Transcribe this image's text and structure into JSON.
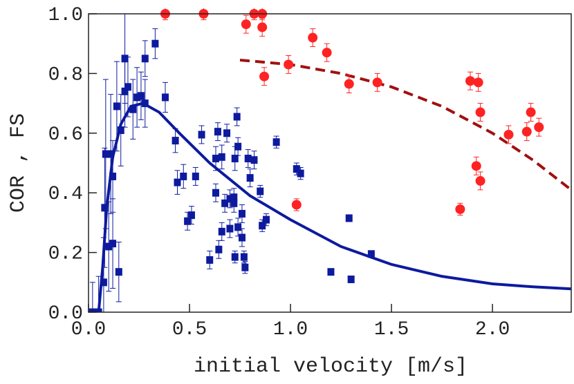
{
  "chart_data": {
    "type": "scatter",
    "x_label": "initial velocity [m/s]",
    "y_label": "COR , FS",
    "xlim": [
      0,
      2.39
    ],
    "ylim": [
      0,
      1
    ],
    "xticks": [
      {
        "value": 0,
        "label": "0.0"
      },
      {
        "value": 0.5,
        "label": "0.5"
      },
      {
        "value": 1,
        "label": "1.0"
      },
      {
        "value": 1.5,
        "label": "1.5"
      },
      {
        "value": 2,
        "label": "2.0"
      }
    ],
    "yticks": [
      {
        "value": 0,
        "label": "0.0"
      },
      {
        "value": 0.2,
        "label": "0.2"
      },
      {
        "value": 0.4,
        "label": "0.4"
      },
      {
        "value": 0.6,
        "label": "0.6"
      },
      {
        "value": 0.8,
        "label": "0.8"
      },
      {
        "value": 1,
        "label": "1.0"
      }
    ],
    "series": [
      {
        "color": "#0d1a9e",
        "marker": "square",
        "x": [
          0.02,
          0.05,
          0.075,
          0.08,
          0.085,
          0.1,
          0.11,
          0.12,
          0.12,
          0.14,
          0.15,
          0.16,
          0.18,
          0.18,
          0.195,
          0.22,
          0.24,
          0.26,
          0.28,
          0.28,
          0.33,
          0.38,
          0.43,
          0.44,
          0.47,
          0.49,
          0.51,
          0.53,
          0.56,
          0.6,
          0.63,
          0.63,
          0.64,
          0.645,
          0.66,
          0.66,
          0.675,
          0.685,
          0.7,
          0.7,
          0.72,
          0.72,
          0.725,
          0.725,
          0.735,
          0.74,
          0.74,
          0.76,
          0.76,
          0.77,
          0.775,
          0.79,
          0.8,
          0.82,
          0.85,
          0.86,
          0.88,
          0.93,
          1.03,
          1.05,
          1.2,
          1.29,
          1.3,
          1.4
        ],
        "values": [
          0,
          0,
          0.1,
          0.35,
          0.53,
          0.22,
          0.53,
          0.23,
          0.455,
          0.69,
          0.135,
          0.61,
          0.74,
          0.85,
          0.755,
          0.68,
          0.72,
          0.725,
          0.7,
          0.85,
          0.9,
          0.72,
          0.575,
          0.435,
          0.455,
          0.305,
          0.325,
          0.455,
          0.595,
          0.175,
          0.515,
          0.4,
          0.605,
          0.21,
          0.27,
          0.52,
          0.365,
          0.6,
          0.38,
          0.28,
          0.385,
          0.365,
          0.185,
          0.515,
          0.655,
          0.555,
          0.285,
          0.33,
          0.25,
          0.185,
          0.15,
          0.515,
          0.45,
          0.51,
          0.405,
          0.29,
          0.31,
          0.57,
          0.48,
          0.465,
          0.135,
          0.315,
          0.11,
          0.195
        ],
        "errors": [
          0.1,
          0.12,
          0.15,
          0.2,
          0.25,
          0.15,
          0.2,
          0.15,
          0.12,
          0.15,
          0.1,
          0.12,
          0.12,
          0.15,
          0.1,
          0.1,
          0.1,
          0.08,
          0.08,
          0.06,
          0.05,
          0.05,
          0.04,
          0.04,
          0.04,
          0.03,
          0.03,
          0.03,
          0.03,
          0.03,
          0.04,
          0.03,
          0.03,
          0.03,
          0.03,
          0.04,
          0.03,
          0.03,
          0.03,
          0.03,
          0.03,
          0.03,
          0.02,
          0.04,
          0.03,
          0.03,
          0.03,
          0.03,
          0.03,
          0.02,
          0.02,
          0.03,
          0.03,
          0.03,
          0.02,
          0.02,
          0.02,
          0.02,
          0.02,
          0.02,
          0.01,
          0.01,
          0.01,
          0.01
        ]
      },
      {
        "color": "#ff2222",
        "marker": "circle",
        "x": [
          0.38,
          0.57,
          0.78,
          0.82,
          0.86,
          0.86,
          0.87,
          0.99,
          1.11,
          1.18,
          1.29,
          1.43,
          1.03,
          1.84,
          1.89,
          1.93,
          1.94,
          1.92,
          1.94,
          2.08,
          2.17,
          2.19,
          2.23
        ],
        "values": [
          1,
          1,
          0.965,
          1,
          1,
          0.955,
          0.79,
          0.83,
          0.92,
          0.87,
          0.765,
          0.77,
          0.36,
          0.345,
          0.775,
          0.77,
          0.67,
          0.49,
          0.44,
          0.595,
          0.605,
          0.67,
          0.62
        ],
        "errors": [
          0.02,
          0.02,
          0.03,
          0.02,
          0.02,
          0.03,
          0.03,
          0.03,
          0.03,
          0.03,
          0.03,
          0.03,
          0.02,
          0.02,
          0.03,
          0.03,
          0.03,
          0.03,
          0.03,
          0.03,
          0.03,
          0.03,
          0.03
        ]
      }
    ],
    "curves": [
      {
        "color": "#0d1a9e",
        "style": "solid",
        "x": [
          0.05,
          0.07,
          0.09,
          0.12,
          0.16,
          0.21,
          0.27,
          0.35,
          0.45,
          0.6,
          0.8,
          1.0,
          1.25,
          1.5,
          1.75,
          2.0,
          2.2,
          2.39
        ],
        "values": [
          0,
          0.15,
          0.35,
          0.52,
          0.63,
          0.69,
          0.7,
          0.67,
          0.6,
          0.5,
          0.39,
          0.31,
          0.22,
          0.16,
          0.12,
          0.095,
          0.085,
          0.078
        ]
      },
      {
        "color": "#a01010",
        "style": "dashed",
        "x": [
          0.75,
          1.0,
          1.25,
          1.5,
          1.75,
          2.0,
          2.2,
          2.39
        ],
        "values": [
          0.845,
          0.83,
          0.8,
          0.755,
          0.69,
          0.6,
          0.51,
          0.41
        ]
      }
    ]
  }
}
